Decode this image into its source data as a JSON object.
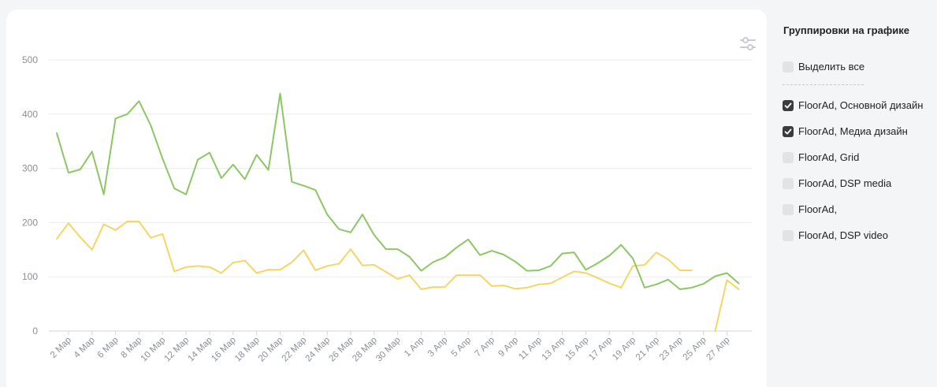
{
  "panel": {
    "title": "Группировки на графике",
    "select_all_label": "Выделить все",
    "select_all_checked": false,
    "items": [
      {
        "label": "FloorAd, Основной дизайн",
        "checked": true
      },
      {
        "label": "FloorAd, Медиа дизайн",
        "checked": true
      },
      {
        "label": "FloorAd, Grid",
        "checked": false
      },
      {
        "label": "FloorAd, DSP media",
        "checked": false
      },
      {
        "label": "FloorAd,",
        "checked": false
      },
      {
        "label": "FloorAd, DSP video",
        "checked": false
      }
    ]
  },
  "toolbar": {
    "settings_icon": "sliders-icon"
  },
  "chart_data": {
    "type": "line",
    "ylim": [
      0,
      500
    ],
    "yticks": [
      0,
      100,
      200,
      300,
      400,
      500
    ],
    "grid": true,
    "x": [
      "1 Мар",
      "2 Мар",
      "3 Мар",
      "4 Мар",
      "5 Мар",
      "6 Мар",
      "7 Мар",
      "8 Мар",
      "9 Мар",
      "10 Мар",
      "11 Мар",
      "12 Мар",
      "13 Мар",
      "14 Мар",
      "15 Мар",
      "16 Мар",
      "17 Мар",
      "18 Мар",
      "19 Мар",
      "20 Мар",
      "21 Мар",
      "22 Мар",
      "23 Мар",
      "24 Мар",
      "25 Мар",
      "26 Мар",
      "27 Мар",
      "28 Мар",
      "29 Мар",
      "30 Мар",
      "31 Мар",
      "1 Апр",
      "2 Апр",
      "3 Апр",
      "4 Апр",
      "5 Апр",
      "6 Апр",
      "7 Апр",
      "8 Апр",
      "9 Апр",
      "10 Апр",
      "11 Апр",
      "12 Апр",
      "13 Апр",
      "14 Апр",
      "15 Апр",
      "16 Апр",
      "17 Апр",
      "18 Апр",
      "19 Апр",
      "20 Апр",
      "21 Апр",
      "22 Апр",
      "23 Апр",
      "24 Апр",
      "25 Апр",
      "26 Апр",
      "27 Апр",
      "28 Апр"
    ],
    "xtick_labels": [
      "2 Мар",
      "4 Мар",
      "6 Мар",
      "8 Мар",
      "10 Мар",
      "12 Мар",
      "14 Мар",
      "16 Мар",
      "18 Мар",
      "20 Мар",
      "22 Мар",
      "24 Мар",
      "26 Мар",
      "28 Мар",
      "30 Мар",
      "1 Апр",
      "3 Апр",
      "5 Апр",
      "7 Апр",
      "9 Апр",
      "11 Апр",
      "13 Апр",
      "15 Апр",
      "17 Апр",
      "19 Апр",
      "21 Апр",
      "23 Апр",
      "25 Апр",
      "27 Апр"
    ],
    "series": [
      {
        "color": "#8cc665",
        "values": [
          365,
          292,
          298,
          331,
          252,
          392,
          400,
          424,
          379,
          318,
          263,
          252,
          316,
          329,
          282,
          307,
          280,
          325,
          297,
          438,
          275,
          268,
          260,
          215,
          188,
          182,
          215,
          177,
          151,
          151,
          137,
          111,
          127,
          136,
          154,
          169,
          140,
          148,
          141,
          128,
          111,
          112,
          120,
          143,
          145,
          113,
          125,
          139,
          159,
          134,
          80,
          86,
          95,
          77,
          80,
          87,
          101,
          107,
          88
        ]
      },
      {
        "color": "#f5d563",
        "values": [
          170,
          199,
          173,
          150,
          197,
          186,
          202,
          202,
          172,
          179,
          110,
          118,
          120,
          118,
          107,
          126,
          130,
          107,
          113,
          113,
          127,
          149,
          112,
          120,
          124,
          151,
          121,
          122,
          109,
          96,
          103,
          77,
          81,
          81,
          103,
          103,
          103,
          83,
          84,
          78,
          80,
          86,
          88,
          99,
          110,
          107,
          98,
          88,
          80,
          120,
          122,
          145,
          132,
          112,
          112,
          null,
          0,
          94,
          77
        ]
      }
    ]
  }
}
